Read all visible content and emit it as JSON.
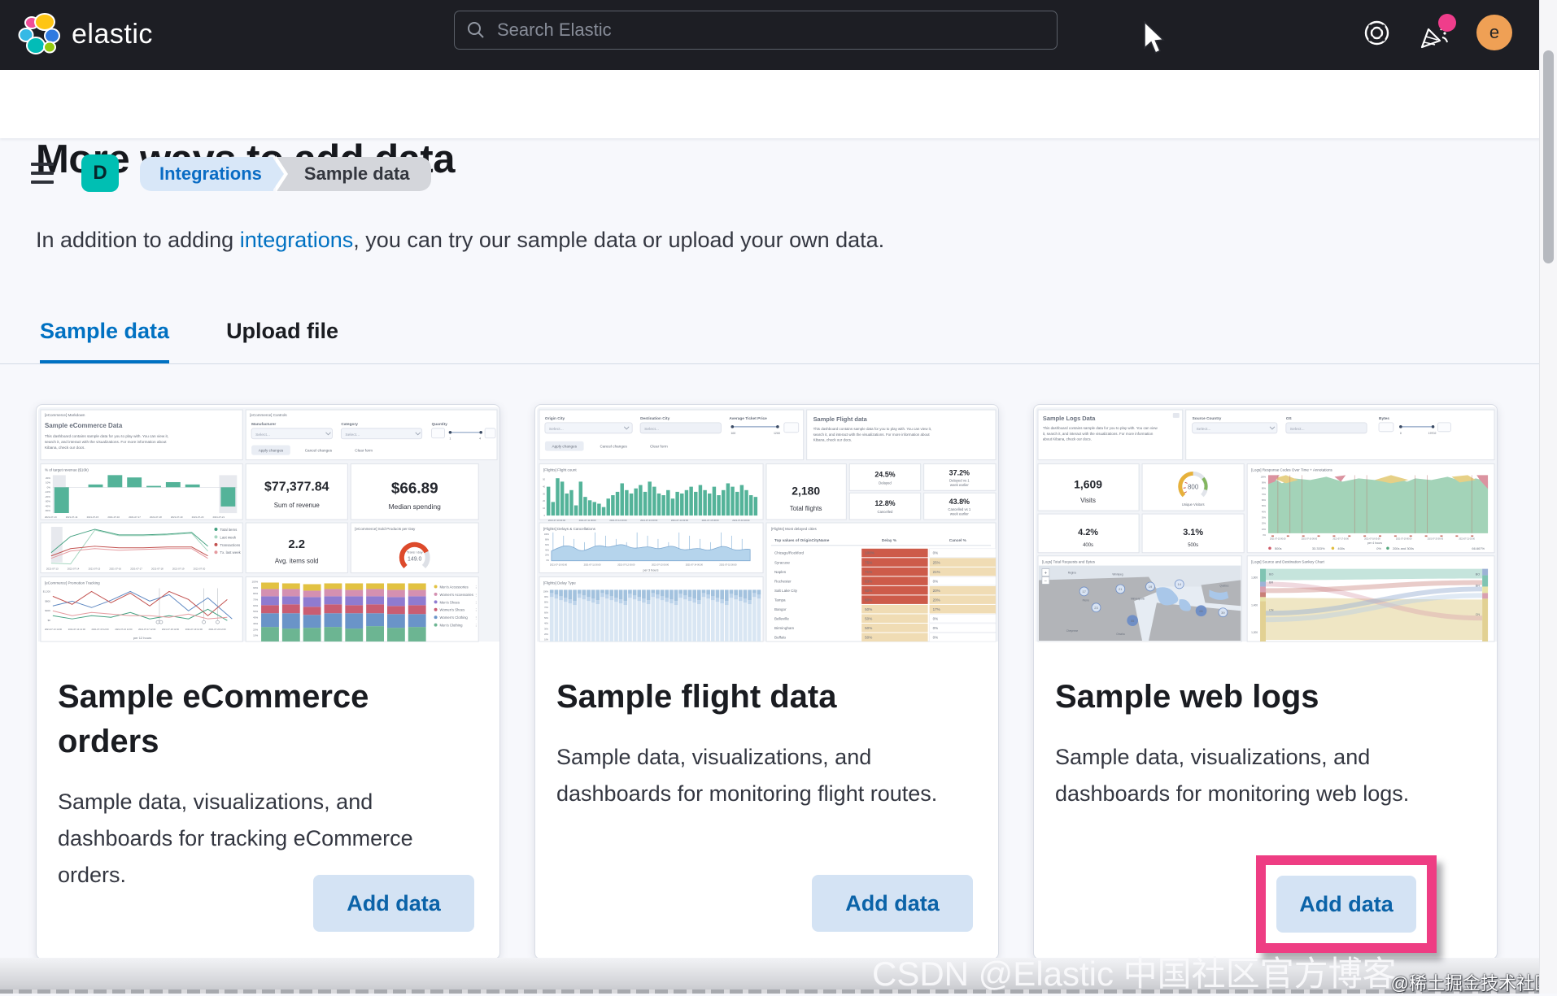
{
  "topbar": {
    "brand": "elastic",
    "search_placeholder": "Search Elastic",
    "avatar_initial": "e"
  },
  "breadcrumbs": {
    "space_initial": "D",
    "integrations": "Integrations",
    "current": "Sample data"
  },
  "page": {
    "title": "More ways to add data",
    "intro_before": "In addition to adding ",
    "intro_link": "integrations",
    "intro_after": ", you can try our sample data or upload your own data.",
    "tab_sample": "Sample data",
    "tab_upload": "Upload file"
  },
  "cards": [
    {
      "title": "Sample eCommerce orders",
      "description": "Sample data, visualizations, and dashboards for tracking eCommerce orders.",
      "button_label": "Add data",
      "preview": {
        "markdown": {
          "kicker": "[eCommerce] Markdown",
          "heading": "Sample eCommerce Data",
          "body_lines": [
            "This dashboard contains sample data for you to play with. You can view it,",
            "search it, and interact with the visualizations. For more information about",
            "Kibana, check our docs."
          ]
        },
        "controls": {
          "kicker": "[eCommerce] Controls",
          "labels": [
            "Manufacturer",
            "Category",
            "Quantity"
          ],
          "select_placeholder": "Select...",
          "slider_min": "1",
          "slider_max": "4",
          "buttons": [
            "Apply changes",
            "Cancel changes",
            "Clear form"
          ]
        },
        "target_revenue": {
          "title": "% of target revenue ($10k)",
          "values": [
            -55,
            6,
            26,
            21,
            3,
            11,
            6,
            -41
          ],
          "y_labels": [
            "20%",
            "10%",
            "0%",
            "-10%",
            "-20%",
            "-30%",
            "-40%",
            "-50%"
          ],
          "x_dates": [
            "2021-07-13",
            "2021-07-14",
            "2021-07-15",
            "2021-07-16",
            "2021-07-17",
            "2021-07-18",
            "2021-07-19",
            "2021-07-20",
            "2021-07-21"
          ]
        },
        "sum_revenue": {
          "value": "$77,377.84",
          "label": "Sum of revenue"
        },
        "median_spending": {
          "value": "$66.89",
          "label": "Median spending"
        },
        "items_legend": [
          "Total items",
          "Last week",
          "Transactions",
          "Tx. last week"
        ],
        "items_dates": [
          "2021-07-13",
          "2021-07-14",
          "2021-07-15",
          "2021-07-16",
          "2021-07-17",
          "2021-07-18",
          "2021-07-19",
          "2021-07-20"
        ],
        "avg_items": {
          "value": "2.2",
          "label": "Avg. items sold"
        },
        "sold_gauge": {
          "kicker": "[eCommerce] Sold Products per Day",
          "sublabel": "Trans / day",
          "value": "149.0"
        },
        "promotion": {
          "kicker": "[eCommerce] Promotion Tracking",
          "x_label": "per 12 hours",
          "y_labels": [
            "$1,200",
            "$800",
            "$400",
            "$0"
          ],
          "x_dates": [
            "2021-07-13 12:00",
            "2021-07-14 12:00",
            "2021-07-15 12:00",
            "2021-07-16 12:00",
            "2021-07-17 12:00",
            "2021-07-18 12:00",
            "2021-07-19 12:00",
            "2021-07-20 12:00"
          ]
        },
        "category_legend": [
          "Men's Accessories",
          "Women's Accessories",
          "Men's Shoes",
          "Women's Shoes",
          "Women's Clothing",
          "Men's Clothing"
        ]
      }
    },
    {
      "title": "Sample flight data",
      "description": "Sample data, visualizations, and dashboards for monitoring flight routes.",
      "button_label": "Add data",
      "preview": {
        "controls": {
          "labels": [
            "Origin City",
            "Destination City",
            "Average Ticket Price"
          ],
          "select_placeholder": "Select...",
          "slider_min": "100",
          "slider_max": "1200",
          "buttons": [
            "Apply changes",
            "Cancel changes",
            "Clear form"
          ]
        },
        "info": {
          "heading": "Sample Flight data",
          "body_lines": [
            "This dashboard contains sample data for you to play with. You can view it,",
            "search it, and interact with the visualizations. For more information about",
            "Kibana, check our docs."
          ]
        },
        "flight_count": {
          "title": "[Flights] Flight count",
          "values": [
            34,
            16,
            44,
            40,
            26,
            30,
            12,
            40,
            22,
            18,
            16,
            14,
            10,
            20,
            24,
            28,
            38,
            30,
            26,
            32,
            36,
            28,
            40,
            34,
            26,
            24,
            30,
            20,
            28,
            26,
            30,
            34,
            28,
            36,
            30,
            26,
            34,
            24,
            30,
            38,
            34,
            28,
            36,
            30,
            24,
            22
          ],
          "x_dates": [
            "2021-07-10 00:00",
            "2021-07-11 00:00",
            "2021-07-12 00:00",
            "2021-07-13 00:00",
            "2021-07-14 00:00",
            "2021-07-15 00:00",
            "2021-07-16 00:00"
          ]
        },
        "total_flights": {
          "value": "2,180",
          "label": "Total flights"
        },
        "stats": [
          {
            "value": "24.5%",
            "label_lines": [
              "Delayed"
            ]
          },
          {
            "value": "37.2%",
            "label_lines": [
              "Delayed vs 1",
              "week earlier"
            ]
          },
          {
            "value": "12.8%",
            "label_lines": [
              "Cancelled"
            ]
          },
          {
            "value": "43.8%",
            "label_lines": [
              "Cancelled vs 1",
              "week earlier"
            ]
          }
        ],
        "delays": {
          "title": "[Flights] Delays & Cancellations",
          "x_label": "per 3 hours",
          "x_dates": [
            "2021-07-10 00:00",
            "2021-07-11 00:00",
            "2021-07-12 00:00",
            "2021-07-13 00:00",
            "2021-07-14 00:00",
            "2021-07-15 00:00"
          ]
        },
        "delay_type": {
          "title": "[Flights] Delay Type"
        },
        "delayed_cities": {
          "title": "[Flights] Most delayed cities",
          "columns": [
            "Top values of OriginCityName",
            "Delay %",
            "Cancel %"
          ],
          "rows": [
            [
              "Chicago/Rockford",
              "100%",
              "0%"
            ],
            [
              "Syracuse",
              "75%",
              "25%"
            ],
            [
              "Naples",
              "71%",
              "21%"
            ],
            [
              "Rochester",
              "63%",
              "0%"
            ],
            [
              "Salt Lake City",
              "60%",
              "20%"
            ],
            [
              "Tampa",
              "60%",
              "20%"
            ],
            [
              "Bangor",
              "50%",
              "17%"
            ],
            [
              "Belleville",
              "50%",
              "0%"
            ],
            [
              "Birmingham",
              "50%",
              "0%"
            ],
            [
              "Buffalo",
              "50%",
              "0%"
            ]
          ]
        }
      }
    },
    {
      "title": "Sample web logs",
      "description": "Sample data, visualizations, and dashboards for monitoring web logs.",
      "button_label": "Add data",
      "preview": {
        "info": {
          "heading": "Sample Logs Data",
          "body_lines": [
            "This dashboard contains sample data for you to play with. You can view",
            "it, search it, and interact with the visualizations. For more information",
            "about Kibana, check our docs."
          ]
        },
        "controls": {
          "labels": [
            "Source Country",
            "OS",
            "Bytes"
          ],
          "select_placeholder": "Select...",
          "slider_min": "0",
          "slider_max": "19702"
        },
        "visits": {
          "value": "1,609",
          "label": "Visits"
        },
        "unique_visitors": {
          "value": "800",
          "label": "Unique Visitors"
        },
        "response_codes": {
          "title": "[Logs] Response Codes Over Time + Annotations",
          "x_label": "per 4 hours",
          "y_top": "100%",
          "x_dates": [
            "2021-07-15 00:00",
            "2021-07-16 00:00",
            "2021-07-17 00:00",
            "2021-07-18 00:00",
            "2021-07-19 00:00",
            "2021-07-20 00:00",
            "2021-07-21 00:00"
          ],
          "legend": [
            {
              "label": "500s",
              "value": "33.333%"
            },
            {
              "label": "400s",
              "value": "0%"
            },
            {
              "label": "200s and 300s",
              "value": "66.667%"
            }
          ]
        },
        "err400": {
          "value": "4.2%",
          "label": "400s"
        },
        "err500": {
          "value": "3.1%",
          "label": "500s"
        },
        "map": {
          "title": "[Logs] Total Requests and Bytes",
          "markers": [
            17,
            21,
            19,
            14,
            65,
            23,
            39,
            55
          ],
          "places": [
            "Regina",
            "Winnipeg",
            "Minneapolis",
            "Pierre",
            "Omaha",
            "Cheyenne",
            "Quebec"
          ]
        },
        "sankey": {
          "title": "[Logs] Source and Destination Sankey Chart",
          "axis_labels": [
            "1,600",
            "1,400",
            "1,200"
          ],
          "left_labels": [
            "BO",
            "BR",
            "CN"
          ],
          "right_labels": [
            "BO",
            "BR",
            "CN"
          ]
        }
      }
    }
  ],
  "watermarks": {
    "csdn": "CSDN @Elastic 中国社区官方博客",
    "juejin": "@稀土掘金技术社区"
  },
  "colors": {
    "accent_blue": "#0071c2",
    "teal_badge": "#00bfb3",
    "highlight_pink": "#ee3d83",
    "button_bg": "#d4e3f4",
    "button_text": "#0b63a8",
    "bar_green": "#54b399",
    "table_red": "#cd5b4a",
    "table_tan": "#f0dcb4",
    "topbar_bg": "#1d1e24"
  }
}
